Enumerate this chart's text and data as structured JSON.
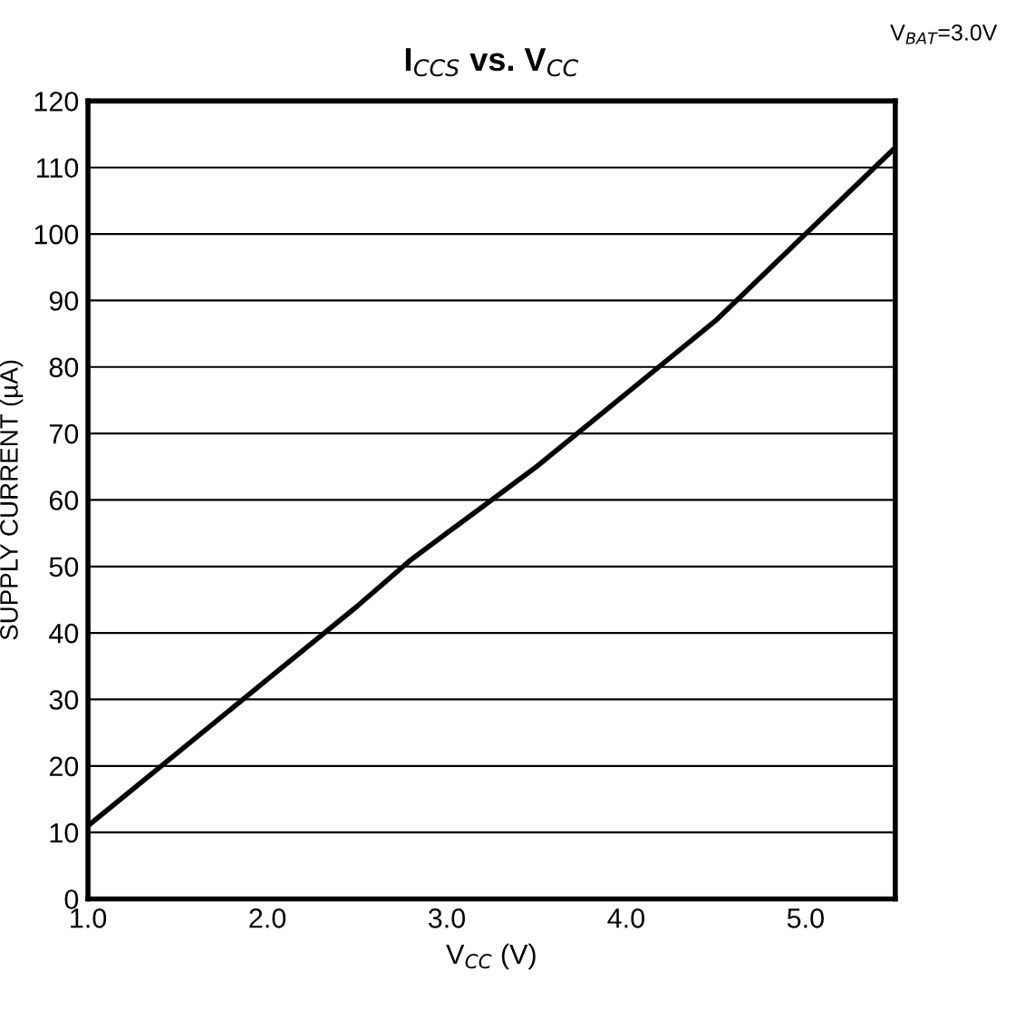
{
  "chart_data": {
    "type": "line",
    "title": "I$_{CCS}$ vs. V$_{CC}$",
    "xlabel": "V$_{CC}$ (V)",
    "ylabel": "SUPPLY CURRENT (µA)",
    "annotations": [
      "V$_{BAT}$=3.0V"
    ],
    "x": [
      1.0,
      1.5,
      2.0,
      2.5,
      2.8,
      3.0,
      3.5,
      4.0,
      4.5,
      5.0,
      5.5
    ],
    "series": [
      {
        "color": "#000000",
        "values": [
          11,
          22,
          33,
          44,
          51,
          55,
          65,
          76,
          87,
          100,
          113
        ]
      }
    ],
    "xlim": [
      1.0,
      5.5
    ],
    "xticks": [
      {
        "value": 1.0,
        "label": "1.0"
      },
      {
        "value": 2.0,
        "label": "2.0"
      },
      {
        "value": 3.0,
        "label": "3.0"
      },
      {
        "value": 4.0,
        "label": "4.0"
      },
      {
        "value": 5.0,
        "label": "5.0"
      }
    ],
    "ylim": [
      0,
      120
    ],
    "yticks": [
      0,
      10,
      20,
      30,
      40,
      50,
      60,
      70,
      80,
      90,
      100,
      110,
      120
    ],
    "grid": "y",
    "legend": false
  }
}
